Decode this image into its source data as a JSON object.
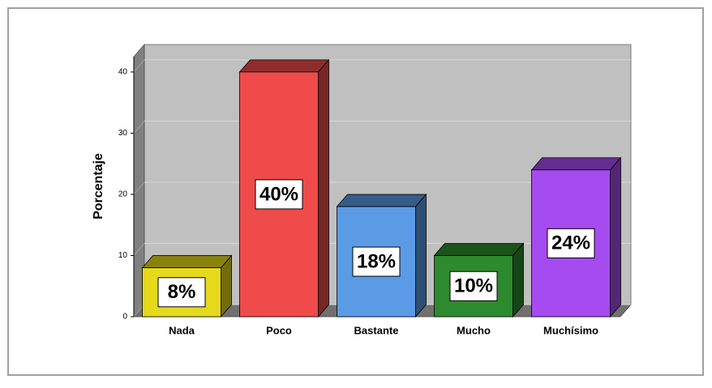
{
  "chart_data": {
    "type": "bar3d",
    "y_label": "Porcentaje",
    "categories": [
      "Nada",
      "Poco",
      "Bastante",
      "Mucho",
      "Muchísimo"
    ],
    "values": [
      8,
      40,
      18,
      10,
      24
    ],
    "value_labels": [
      "8%",
      "40%",
      "18%",
      "10%",
      "24%"
    ],
    "colors": [
      "#e6d81a",
      "#ef4b4b",
      "#5b9be6",
      "#2e8a2e",
      "#a64bf0"
    ],
    "ylim": [
      0,
      42.5
    ],
    "yticks": [
      0,
      10,
      20,
      30,
      40
    ],
    "grid": true
  }
}
